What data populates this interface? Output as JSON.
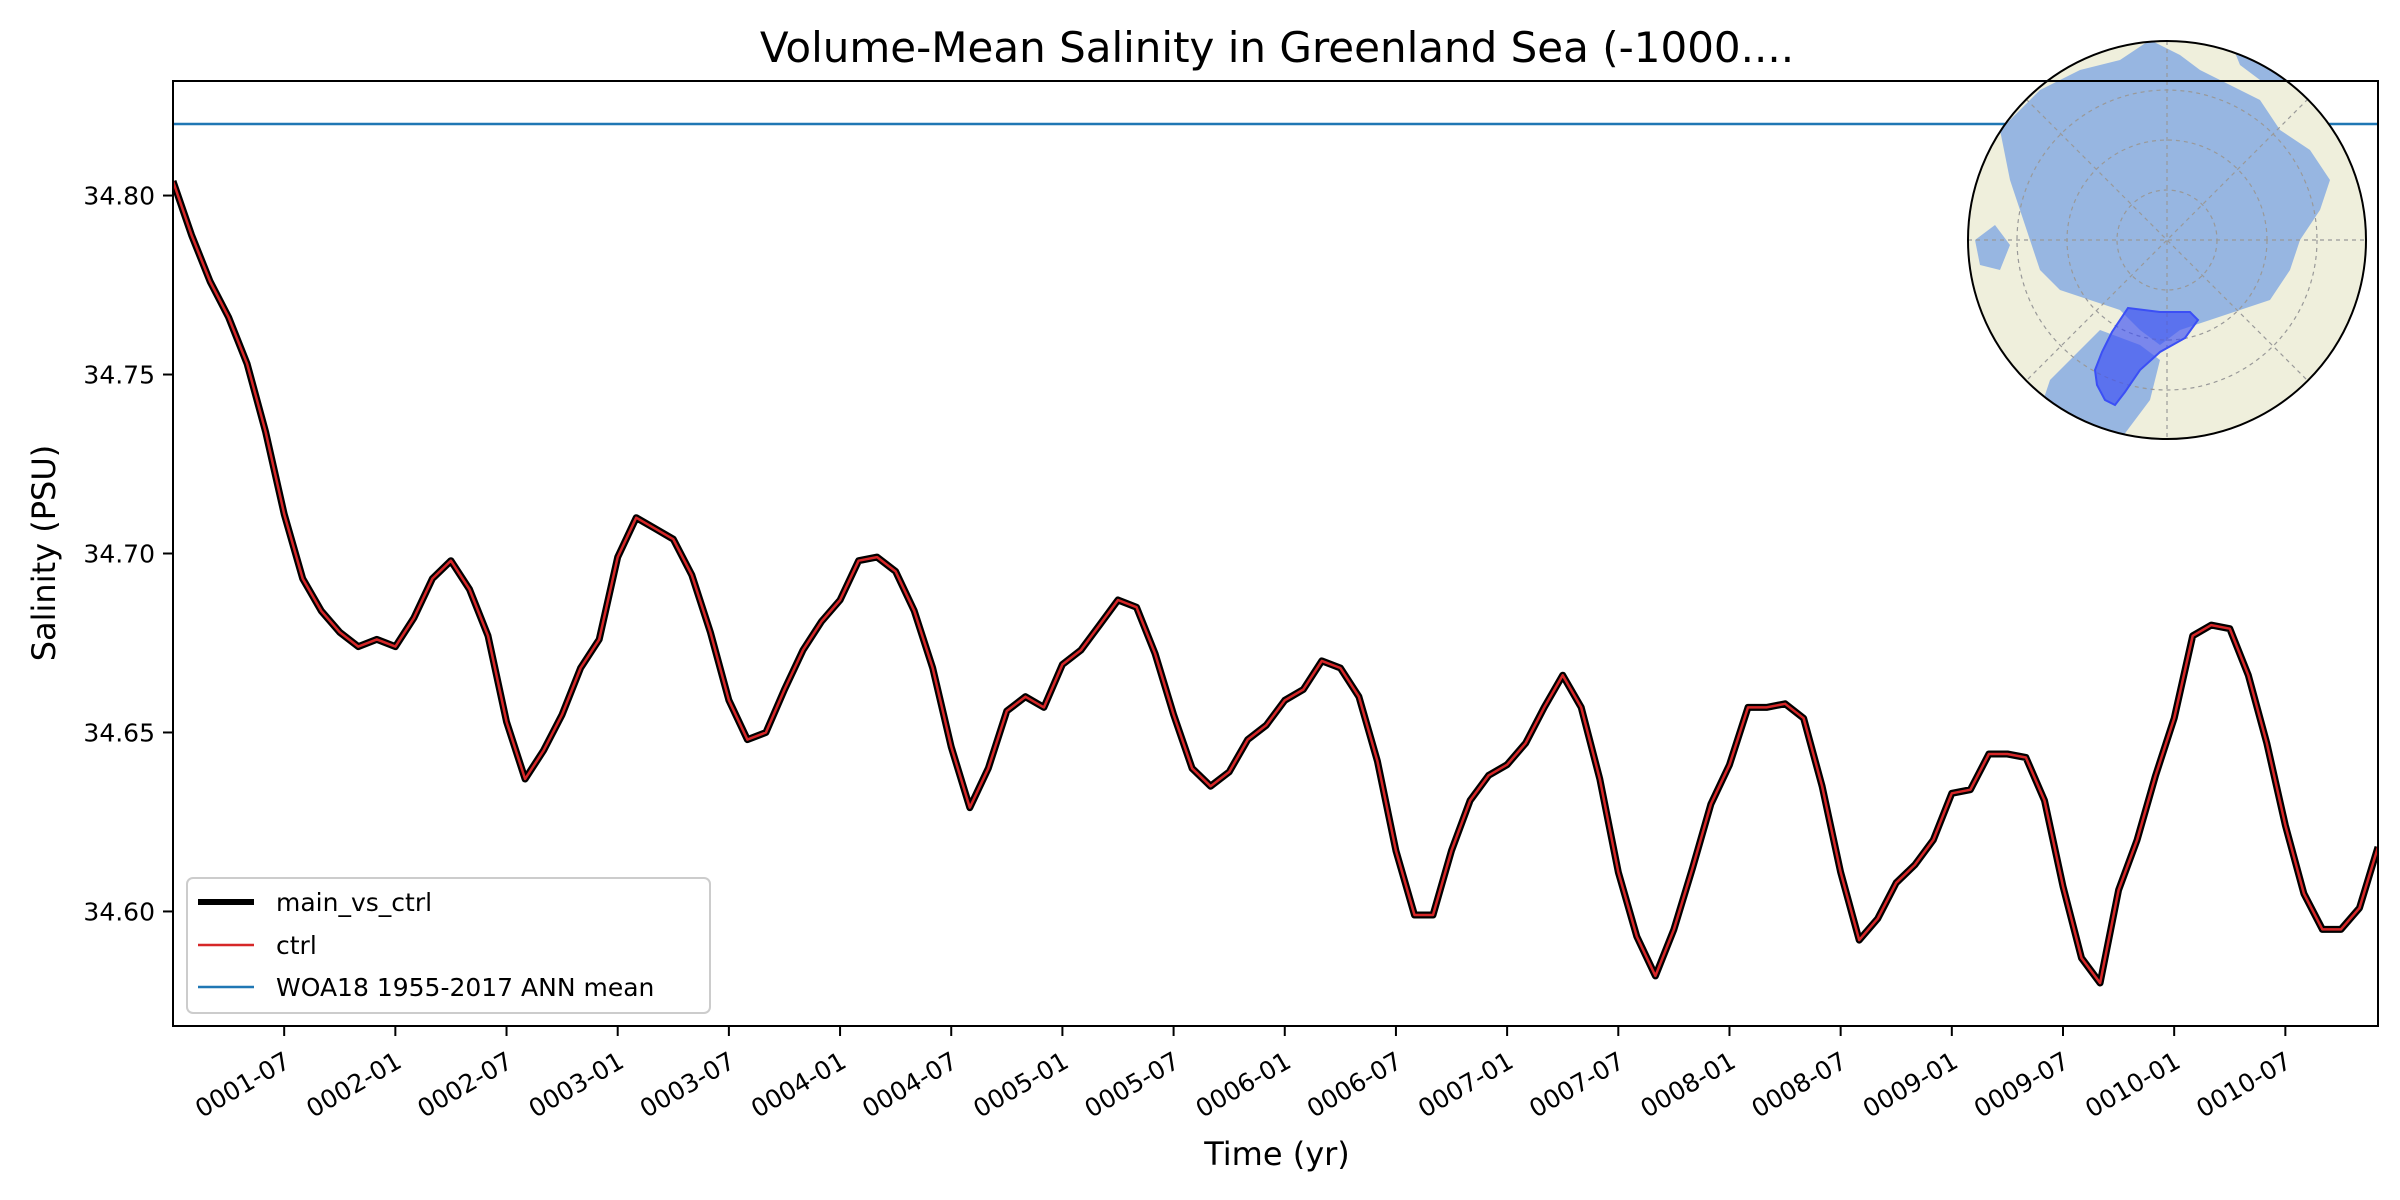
{
  "chart_data": {
    "type": "line",
    "title": "Volume-Mean Salinity in Greenland Sea (-1000....",
    "xlabel": "Time (yr)",
    "ylabel": "Salinity (PSU)",
    "xlim": [
      0,
      119
    ],
    "ylim": [
      34.568,
      34.832
    ],
    "yticks": [
      34.6,
      34.65,
      34.7,
      34.75,
      34.8
    ],
    "ytick_labels": [
      "34.60",
      "34.65",
      "34.70",
      "34.75",
      "34.80"
    ],
    "xticks": [
      6,
      12,
      18,
      24,
      30,
      36,
      42,
      48,
      54,
      60,
      66,
      72,
      78,
      84,
      90,
      96,
      102,
      108,
      114
    ],
    "xtick_labels": [
      "0001-07",
      "0002-01",
      "0002-07",
      "0003-01",
      "0003-07",
      "0004-01",
      "0004-07",
      "0005-01",
      "0005-07",
      "0006-01",
      "0006-07",
      "0007-01",
      "0007-07",
      "0008-01",
      "0008-07",
      "0009-01",
      "0009-07",
      "0010-01",
      "0010-07"
    ],
    "legend_position": "lower-left",
    "series": [
      {
        "name": "main_vs_ctrl",
        "color": "#000000",
        "values": [
          34.804,
          34.789,
          34.776,
          34.766,
          34.753,
          34.734,
          34.711,
          34.693,
          34.684,
          34.678,
          34.674,
          34.676,
          34.674,
          34.682,
          34.693,
          34.698,
          34.69,
          34.677,
          34.653,
          34.637,
          34.645,
          34.655,
          34.668,
          34.676,
          34.699,
          34.71,
          34.707,
          34.704,
          34.694,
          34.678,
          34.659,
          34.648,
          34.65,
          34.662,
          34.673,
          34.681,
          34.687,
          34.698,
          34.699,
          34.695,
          34.684,
          34.668,
          34.646,
          34.629,
          34.64,
          34.656,
          34.66,
          34.657,
          34.669,
          34.673,
          34.68,
          34.687,
          34.685,
          34.672,
          34.655,
          34.64,
          34.635,
          34.639,
          34.648,
          34.652,
          34.659,
          34.662,
          34.67,
          34.668,
          34.66,
          34.642,
          34.617,
          34.599,
          34.599,
          34.617,
          34.631,
          34.638,
          34.641,
          34.647,
          34.657,
          34.666,
          34.657,
          34.637,
          34.611,
          34.593,
          34.582,
          34.595,
          34.612,
          34.63,
          34.641,
          34.657,
          34.657,
          34.658,
          34.654,
          34.635,
          34.611,
          34.592,
          34.598,
          34.608,
          34.613,
          34.62,
          34.633,
          34.634,
          34.644,
          34.644,
          34.643,
          34.631,
          34.607,
          34.587,
          34.58,
          34.606,
          34.62,
          34.638,
          34.654,
          34.677,
          34.68,
          34.679,
          34.666,
          34.647,
          34.624,
          34.605,
          34.595,
          34.595,
          34.601,
          34.618
        ]
      },
      {
        "name": "ctrl",
        "color": "#d62728"
      },
      {
        "name": "WOA18 1955-2017 ANN mean",
        "color": "#1f77b4",
        "value": 34.82
      }
    ]
  }
}
